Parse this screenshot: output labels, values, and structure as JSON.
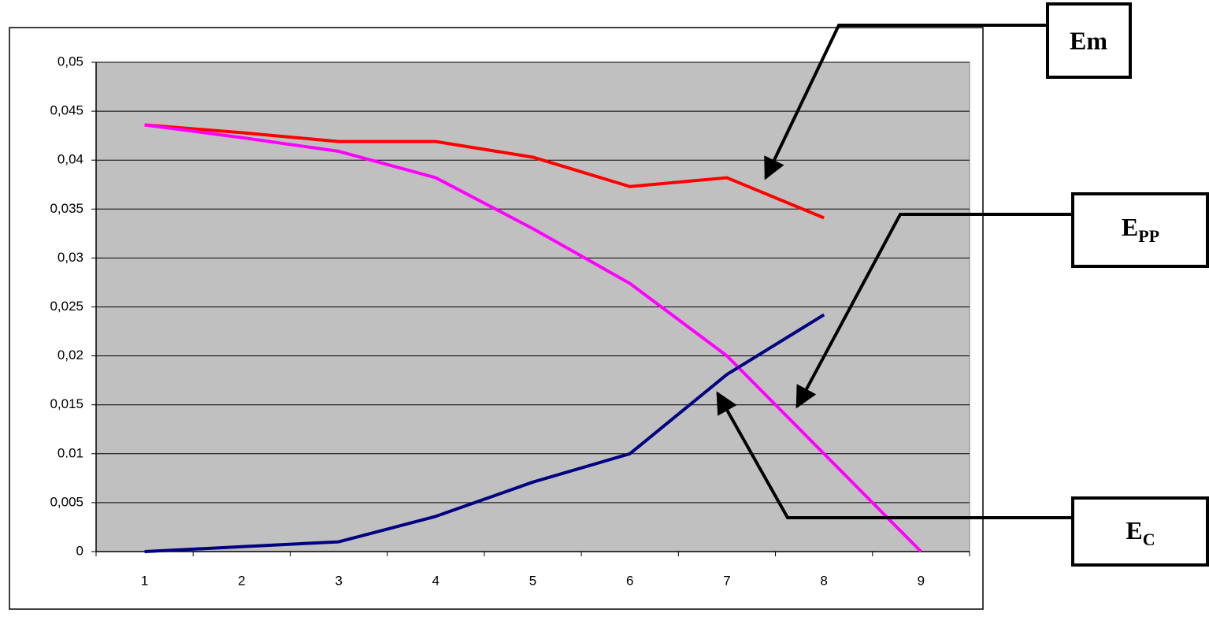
{
  "chart_data": {
    "type": "line",
    "categories": [
      "1",
      "2",
      "3",
      "4",
      "5",
      "6",
      "7",
      "8",
      "9"
    ],
    "series": [
      {
        "name": "Em",
        "color": "#ff0000",
        "values": [
          0.0436,
          0.0428,
          0.0419,
          0.0419,
          0.0403,
          0.0373,
          0.0382,
          0.0341,
          null
        ]
      },
      {
        "name": "E",
        "name_sub": "PP",
        "color": "#ff00ff",
        "values": [
          0.0436,
          0.0423,
          0.0409,
          0.0382,
          0.033,
          0.0274,
          0.02,
          0.01,
          0
        ]
      },
      {
        "name": "E",
        "name_sub": "C",
        "color": "#000080",
        "values": [
          0,
          0.0005,
          0.001,
          0.0036,
          0.0071,
          0.01,
          0.0181,
          0.0242,
          null
        ]
      }
    ],
    "ylim": [
      0,
      0.05
    ],
    "yticks": [
      0,
      {
        "value": 0.005,
        "label": "0,005"
      },
      {
        "value": 0.01,
        "label": "0.01"
      },
      {
        "value": 0.015,
        "label": "0,015"
      },
      {
        "value": 0.02,
        "label": "0,02"
      },
      {
        "value": 0.025,
        "label": "0,025"
      },
      {
        "value": 0.03,
        "label": "0,03"
      },
      {
        "value": 0.035,
        "label": "0,035"
      },
      {
        "value": 0.04,
        "label": "0,04"
      },
      {
        "value": 0.045,
        "label": "0,045"
      },
      {
        "value": 0.05,
        "label": "0,05"
      }
    ],
    "grid": true,
    "plot_background": "#c0c0c0"
  }
}
